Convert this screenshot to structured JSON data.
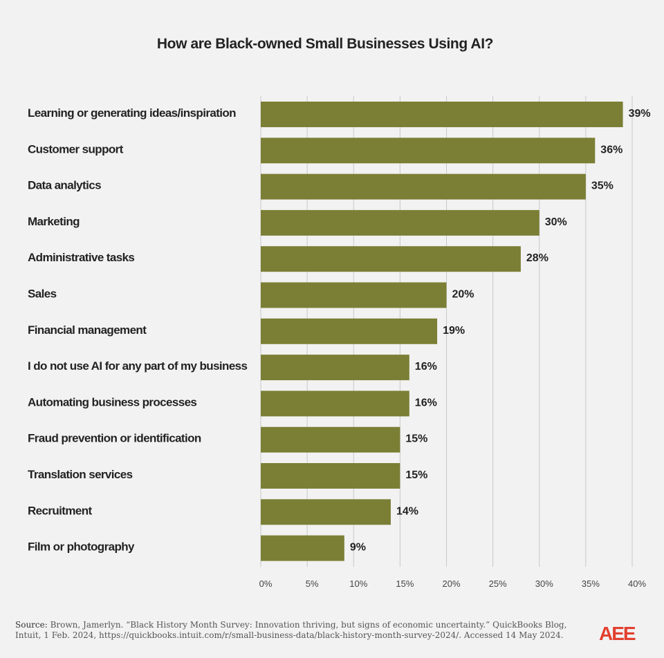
{
  "chart_data": {
    "type": "bar",
    "orientation": "horizontal",
    "title": "How are Black-owned Small Businesses Using AI?",
    "categories": [
      "Learning or generating ideas/inspiration",
      "Customer support",
      "Data analytics",
      "Marketing",
      "Administrative tasks",
      "Sales",
      "Financial management",
      "I do not use AI for any part of my business",
      "Automating business processes",
      "Fraud prevention or identification",
      "Translation services",
      "Recruitment",
      "Film or photography"
    ],
    "values": [
      39,
      36,
      35,
      30,
      28,
      20,
      19,
      16,
      16,
      15,
      15,
      14,
      9
    ],
    "value_labels": [
      "39%",
      "36%",
      "35%",
      "30%",
      "28%",
      "20%",
      "19%",
      "16%",
      "16%",
      "15%",
      "15%",
      "14%",
      "9%"
    ],
    "xlim": [
      0,
      40
    ],
    "ticks": [
      0,
      5,
      10,
      15,
      20,
      25,
      30,
      35,
      40
    ],
    "tick_labels": [
      "0%",
      "5%",
      "10%",
      "15%",
      "20%",
      "25%",
      "30%",
      "35%",
      "40%"
    ],
    "grid": true,
    "bar_color": "#7b7f35",
    "grid_color": "#c8c8c8"
  },
  "source": {
    "label": "Source:",
    "text": "Brown, Jamerlyn. “Black History Month Survey: Innovation thriving, but signs of economic uncertainty.” QuickBooks Blog, Intuit, 1 Feb. 2024, https://quickbooks.intuit.com/r/small-business-data/black-history-month-survey-2024/. Accessed 14 May 2024."
  },
  "logo": {
    "text": "AEE",
    "color": "#e2402f"
  }
}
